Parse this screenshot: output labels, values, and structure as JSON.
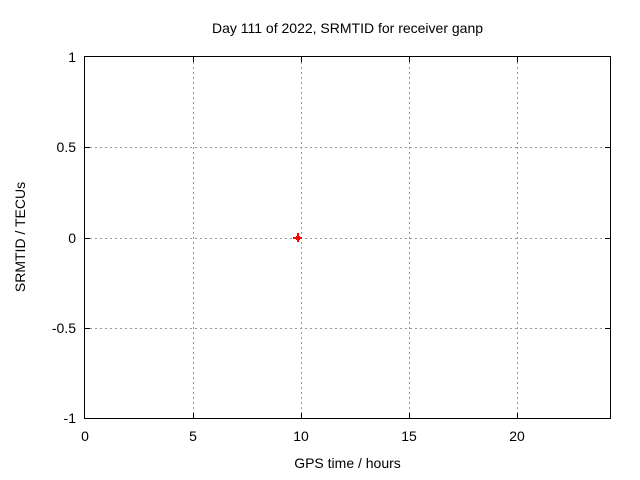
{
  "page": {
    "background_color": "#ffffff",
    "axis_color": "#000000",
    "grid_color": "#9a9a9a"
  },
  "chart_data": {
    "type": "scatter",
    "title": "Day 111 of 2022, SRMTID for receiver ganp",
    "xlabel": "GPS time / hours",
    "ylabel": "SRMTID / TECUs",
    "xlim": [
      0,
      24.3
    ],
    "ylim": [
      -1,
      1
    ],
    "xticks": [
      0,
      5,
      10,
      15,
      20
    ],
    "yticks": [
      -1,
      -0.5,
      0,
      0.5,
      1
    ],
    "grid": true,
    "legend": "none",
    "series": [
      {
        "name": "SRMTID",
        "marker": "plus",
        "color": "#ff0000",
        "points": [
          {
            "x": 9.85,
            "y": 0
          }
        ]
      }
    ]
  }
}
